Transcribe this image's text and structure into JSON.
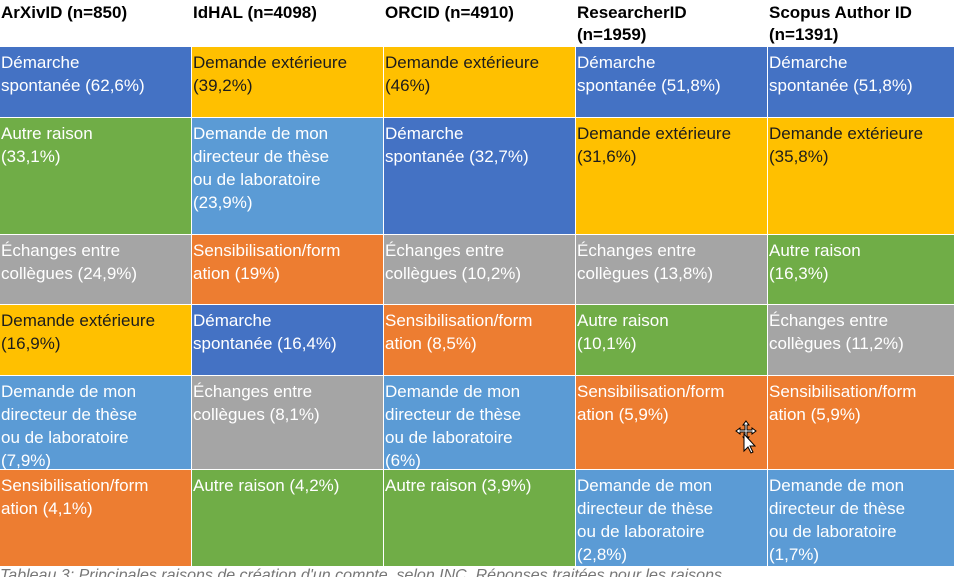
{
  "table": {
    "headers": [
      "ArXivID (n=850)",
      "IdHAL (n=4098)",
      "ORCID (n=4910)",
      "ResearcherID\n(n=1959)",
      "Scopus Author ID\n(n=1391)"
    ],
    "rows": [
      [
        "Démarche\nspontanée (62,6%)",
        "Demande extérieure\n(39,2%)",
        "Demande extérieure\n(46%)",
        "Démarche\nspontanée (51,8%)",
        "Démarche\nspontanée (51,8%)"
      ],
      [
        "Autre raison\n(33,1%)",
        "Demande de mon\ndirecteur de thèse\nou de laboratoire\n(23,9%)",
        "Démarche\nspontanée (32,7%)",
        "Demande extérieure\n(31,6%)",
        "Demande extérieure\n(35,8%)"
      ],
      [
        "Échanges entre\ncollègues (24,9%)",
        "Sensibilisation/form\nation (19%)",
        "Échanges entre\ncollègues (10,2%)",
        "Échanges entre\ncollègues (13,8%)",
        "Autre raison\n(16,3%)"
      ],
      [
        "Demande extérieure\n(16,9%)",
        "Démarche\nspontanée (16,4%)",
        "Sensibilisation/form\nation (8,5%)",
        "Autre raison\n(10,1%)",
        "Échanges entre\ncollègues (11,2%)"
      ],
      [
        "Demande de mon\ndirecteur de thèse\nou de laboratoire\n(7,9%)",
        "Échanges entre\ncollègues (8,1%)",
        "Demande de mon\ndirecteur de thèse\nou de laboratoire\n(6%)",
        "Sensibilisation/form\nation (5,9%)",
        "Sensibilisation/form\nation (5,9%)"
      ],
      [
        "Sensibilisation/form\nation (4,1%)",
        "Autre raison (4,2%)",
        "Autre raison (3,9%)",
        "Demande de mon\ndirecteur de thèse\nou de laboratoire\n(2,8%)",
        "Demande de mon\ndirecteur de thèse\nou de laboratoire\n(1,7%)"
      ]
    ],
    "row_colors": [
      [
        "#4472c4",
        "#ffc000",
        "#ffc000",
        "#4472c4",
        "#4472c4"
      ],
      [
        "#70ad47",
        "#5b9bd5",
        "#4472c4",
        "#ffc000",
        "#ffc000"
      ],
      [
        "#a5a5a5",
        "#ed7d31",
        "#a5a5a5",
        "#a5a5a5",
        "#70ad47"
      ],
      [
        "#ffc000",
        "#4472c4",
        "#ed7d31",
        "#70ad47",
        "#a5a5a5"
      ],
      [
        "#5b9bd5",
        "#a5a5a5",
        "#5b9bd5",
        "#ed7d31",
        "#ed7d31"
      ],
      [
        "#ed7d31",
        "#70ad47",
        "#70ad47",
        "#5b9bd5",
        "#5b9bd5"
      ]
    ]
  },
  "caption": "Tableau 3: Principales raisons de création d'un compte, selon INC. Réponses traitées pour les raisons"
}
